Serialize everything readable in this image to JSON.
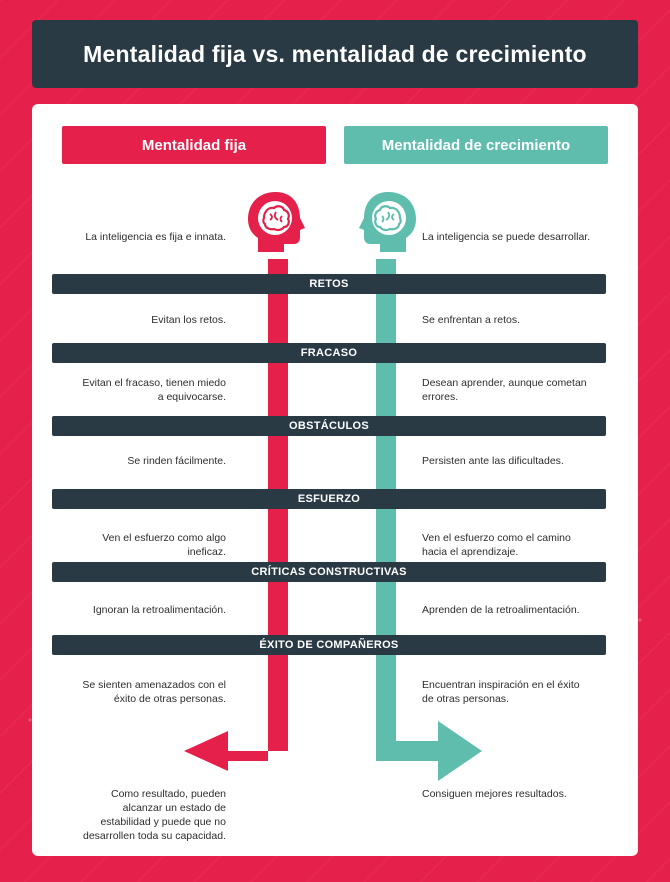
{
  "title": "Mentalidad fija vs. mentalidad de crecimiento",
  "columns": {
    "fixed": "Mentalidad fija",
    "growth": "Mentalidad de crecimiento"
  },
  "intro": {
    "fixed": "La inteligencia es fija e innata.",
    "growth": "La inteligencia se puede desarrollar."
  },
  "sections": [
    {
      "label": "RETOS",
      "fixed": "Evitan los retos.",
      "growth": "Se enfrentan a retos."
    },
    {
      "label": "FRACASO",
      "fixed": "Evitan el fracaso, tienen miedo\na equivocarse.",
      "growth": "Desean aprender, aunque cometan\nerrores."
    },
    {
      "label": "OBSTÁCULOS",
      "fixed": "Se rinden fácilmente.",
      "growth": "Persisten ante las dificultades."
    },
    {
      "label": "ESFUERZO",
      "fixed": "Ven el esfuerzo como algo\nineficaz.",
      "growth": "Ven el esfuerzo como el camino\nhacia el aprendizaje."
    },
    {
      "label": "CRÍTICAS CONSTRUCTIVAS",
      "fixed": "Ignoran la retroalimentación.",
      "growth": "Aprenden de la retroalimentación."
    },
    {
      "label": "ÉXITO DE COMPAÑEROS",
      "fixed": "Se sienten amenazados con el\néxito de otras personas.",
      "growth": "Encuentran inspiración en el éxito\nde otras personas."
    }
  ],
  "result": {
    "fixed": "Como resultado, pueden\nalcanzar un estado de\nestabilidad y puede que no\ndesarrollen toda su capacidad.",
    "growth": "Consiguen mejores resultados."
  },
  "colors": {
    "fixed": "#e5204a",
    "growth": "#5fbdae",
    "dark": "#293a45"
  }
}
